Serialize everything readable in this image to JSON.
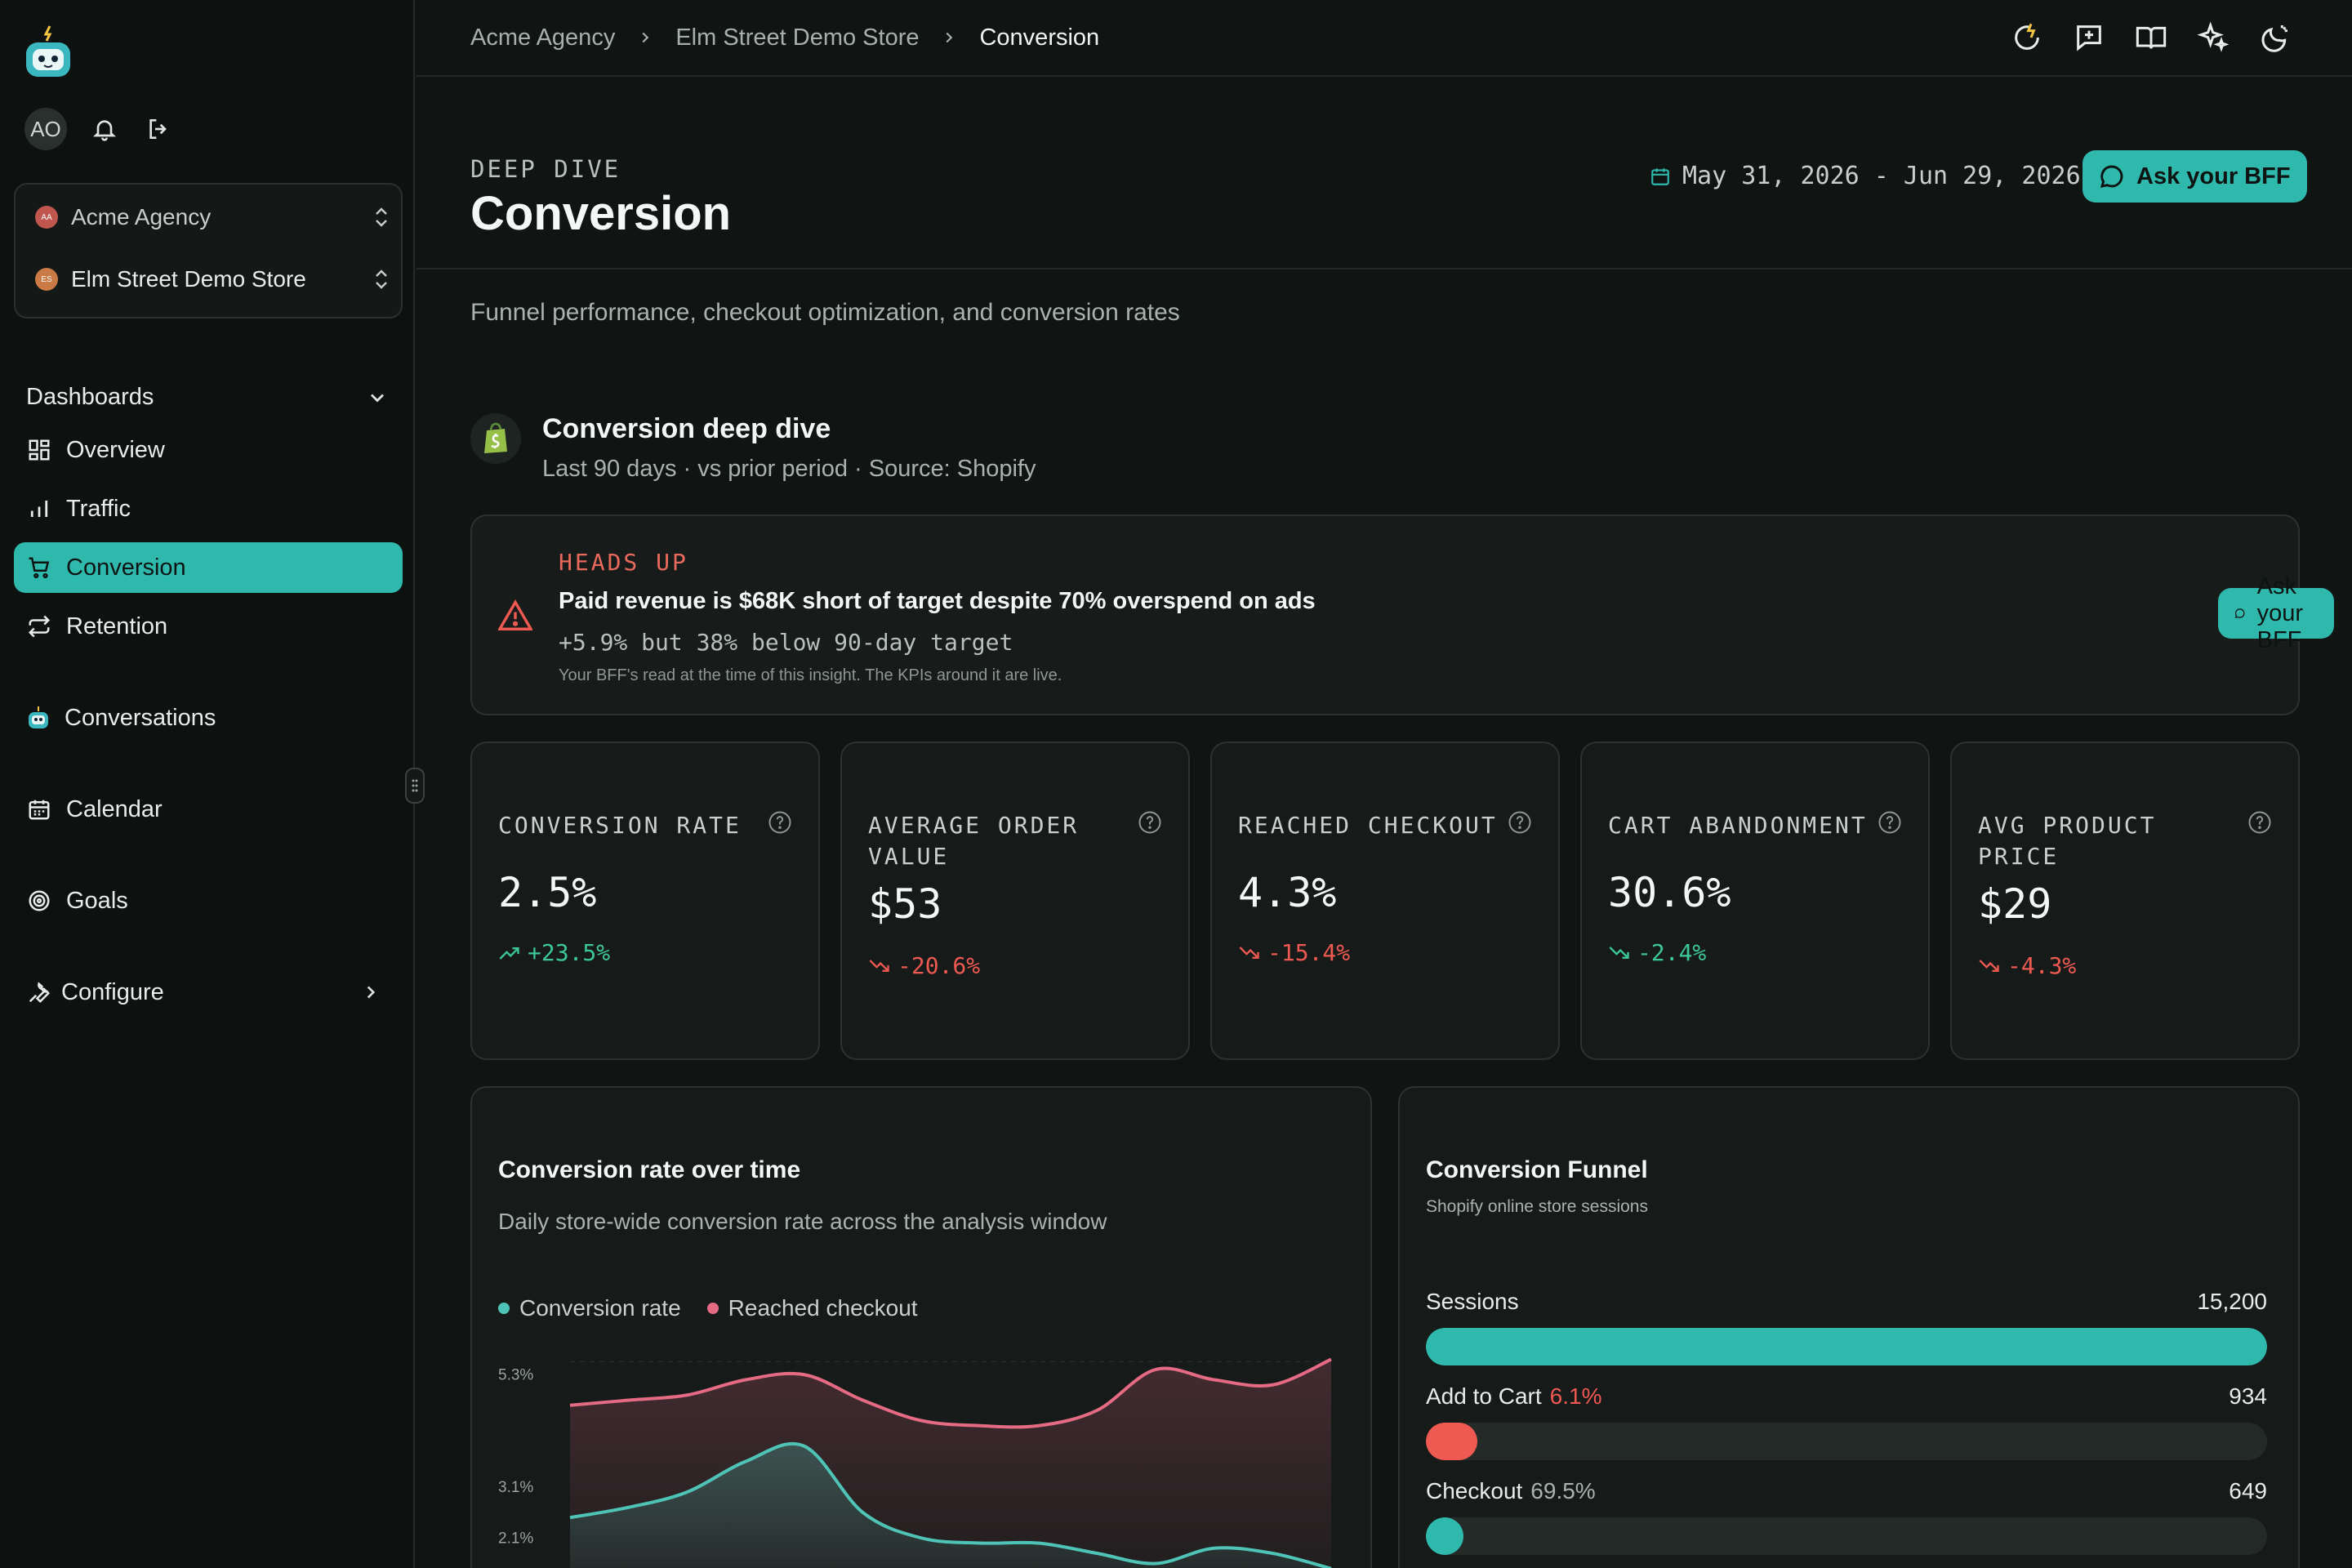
{
  "app": {
    "user_initials": "AO",
    "accent": "#2fb8ac"
  },
  "switcher": {
    "agency": {
      "name": "Acme Agency",
      "initials": "AA",
      "color": "#c0564d"
    },
    "store": {
      "name": "Elm Street Demo Store",
      "initials": "ES",
      "color": "#c97a45"
    }
  },
  "sidebar": {
    "section_label": "Dashboards",
    "items": [
      {
        "label": "Overview",
        "icon": "grid-icon"
      },
      {
        "label": "Traffic",
        "icon": "bar-chart-icon"
      },
      {
        "label": "Conversion",
        "icon": "cart-icon",
        "active": true
      },
      {
        "label": "Retention",
        "icon": "repeat-icon"
      }
    ],
    "conversations": "Conversations",
    "calendar": "Calendar",
    "goals": "Goals",
    "configure": "Configure"
  },
  "breadcrumbs": [
    "Acme Agency",
    "Elm Street Demo Store",
    "Conversion"
  ],
  "header": {
    "eyebrow": "DEEP DIVE",
    "title": "Conversion",
    "date_range": "May 31, 2026 - Jun 29, 2026",
    "ask_label": "Ask your BFF",
    "subtitle": "Funnel performance, checkout optimization, and conversion rates"
  },
  "section": {
    "title": "Conversion deep dive",
    "subtitle": "Last 90 days · vs prior period · Source: Shopify"
  },
  "alert": {
    "eyebrow": "HEADS UP",
    "title": "Paid revenue is $68K short of target despite 70% overspend on ads",
    "detail": "+5.9% but 38% below 90-day target",
    "note": "Your BFF's read at the time of this insight. The KPIs around it are live.",
    "ask_label": "Ask your BFF"
  },
  "kpis": [
    {
      "label": "CONVERSION RATE",
      "value": "2.5%",
      "delta": "+23.5%",
      "direction": "up",
      "tone": "good"
    },
    {
      "label": "AVERAGE ORDER VALUE",
      "value": "$53",
      "delta": "-20.6%",
      "direction": "down",
      "tone": "bad"
    },
    {
      "label": "REACHED CHECKOUT",
      "value": "4.3%",
      "delta": "-15.4%",
      "direction": "down",
      "tone": "bad"
    },
    {
      "label": "CART ABANDONMENT",
      "value": "30.6%",
      "delta": "-2.4%",
      "direction": "down",
      "tone": "good"
    },
    {
      "label": "AVG PRODUCT PRICE",
      "value": "$29",
      "delta": "-4.3%",
      "direction": "down",
      "tone": "bad"
    }
  ],
  "conversion_chart": {
    "title": "Conversion rate over time",
    "subtitle": "Daily store-wide conversion rate across the analysis window"
  },
  "chart_data": {
    "type": "area",
    "title": "Conversion rate over time",
    "y_tick_labels": [
      "5.3%",
      "3.1%",
      "2.1%"
    ],
    "y_ticks": [
      5.3,
      3.1,
      2.1
    ],
    "legend": "top-left",
    "series": [
      {
        "name": "Conversion rate",
        "color": "#4fc4b6",
        "values": [
          2.5,
          2.7,
          3.0,
          3.6,
          3.9,
          2.6,
          2.1,
          2.0,
          2.0,
          1.8,
          1.6,
          1.9,
          1.8,
          1.5
        ]
      },
      {
        "name": "Reached checkout",
        "color": "#e56a84",
        "values": [
          4.7,
          4.8,
          4.9,
          5.2,
          5.3,
          4.8,
          4.4,
          4.3,
          4.3,
          4.6,
          5.4,
          5.2,
          5.1,
          5.6
        ]
      }
    ]
  },
  "funnel": {
    "title": "Conversion Funnel",
    "subtitle": "Shopify online store sessions",
    "steps": [
      {
        "label": "Sessions",
        "pct": "",
        "value": "15,200",
        "fraction": 1.0,
        "color": "#2fb8ac",
        "pct_color": ""
      },
      {
        "label": "Add to Cart",
        "pct": "6.1%",
        "value": "934",
        "fraction": 0.061,
        "color": "#ee5a52",
        "pct_color": "#ee5a52"
      },
      {
        "label": "Checkout",
        "pct": "69.5%",
        "value": "649",
        "fraction": 0.043,
        "color": "#2fb8ac",
        "pct_color": "#a9b2af"
      }
    ]
  }
}
